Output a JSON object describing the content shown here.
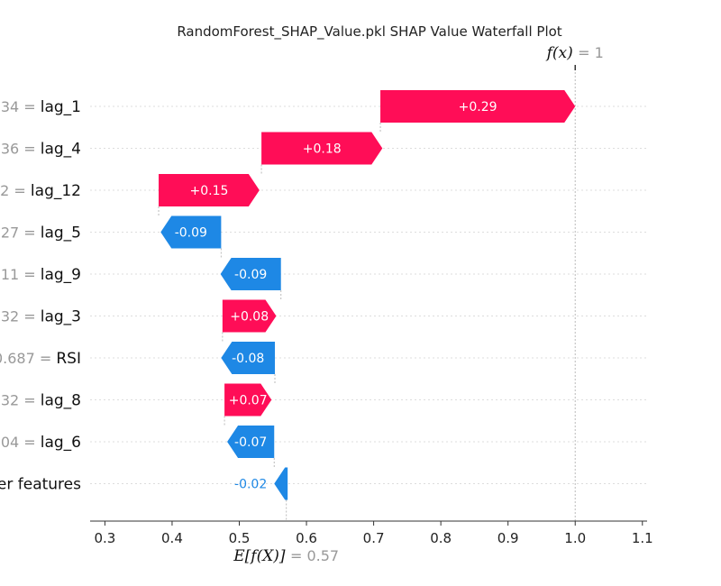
{
  "chart_data": {
    "type": "waterfall",
    "title": "RandomForest_SHAP_Value.pkl SHAP Value Waterfall Plot",
    "base_value_label": "E[f(X)]",
    "base_value_text": "= 0.57",
    "base_value": 0.57,
    "output_label": "f(x)",
    "output_value_text": "= 1",
    "output_value": 1.0,
    "x_ticks": [
      "0.3",
      "0.4",
      "0.5",
      "0.6",
      "0.7",
      "0.8",
      "0.9",
      "1.0",
      "1.1"
    ],
    "x_tick_values": [
      0.3,
      0.4,
      0.5,
      0.6,
      0.7,
      0.8,
      0.9,
      1.0,
      1.1
    ],
    "xlim": [
      0.278,
      1.107
    ],
    "features": [
      {
        "value_text": "34 =",
        "name": "lag_1",
        "shap": 0.29,
        "label": "+0.29",
        "start": 0.71
      },
      {
        "value_text": "36 =",
        "name": "lag_4",
        "shap": 0.18,
        "label": "+0.18",
        "start": 0.533
      },
      {
        "value_text": "2 =",
        "name": "lag_12",
        "shap": 0.15,
        "label": "+0.15",
        "start": 0.38
      },
      {
        "value_text": "27 =",
        "name": "lag_5",
        "shap": -0.09,
        "label": "-0.09",
        "start": 0.473
      },
      {
        "value_text": "11 =",
        "name": "lag_9",
        "shap": -0.09,
        "label": "-0.09",
        "start": 0.562
      },
      {
        "value_text": "32 =",
        "name": "lag_3",
        "shap": 0.08,
        "label": "+0.08",
        "start": 0.475
      },
      {
        "value_text": "0.687 =",
        "name": "RSI",
        "shap": -0.08,
        "label": "-0.08",
        "start": 0.553
      },
      {
        "value_text": "32 =",
        "name": "lag_8",
        "shap": 0.07,
        "label": "+0.07",
        "start": 0.478
      },
      {
        "value_text": "04 =",
        "name": "lag_6",
        "shap": -0.07,
        "label": "-0.07",
        "start": 0.552
      },
      {
        "value_text": "",
        "name": "er features",
        "shap": -0.02,
        "label": "-0.02",
        "start": 0.572
      }
    ],
    "colors": {
      "positive": "#ff0d57",
      "negative": "#1e88e5",
      "grid": "#dddddd",
      "axis": "#333333"
    }
  }
}
